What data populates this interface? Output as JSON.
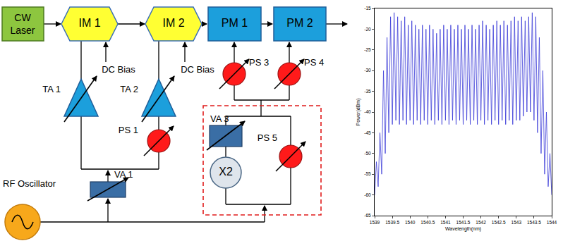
{
  "diagram": {
    "source": "CW Laser",
    "modulators": [
      "IM 1",
      "IM 2",
      "PM 1",
      "PM 2"
    ],
    "bias": [
      "DC Bias",
      "DC Bias"
    ],
    "amplifiers": [
      "TA 1",
      "TA 2"
    ],
    "phase_shifters": [
      "PS 1",
      "PS 3",
      "PS 4",
      "PS 5"
    ],
    "attenuators": [
      "VA 1",
      "VA 3"
    ],
    "multiplier": "X2",
    "oscillator": "RF Oscillator"
  },
  "chart_data": {
    "type": "line",
    "x_label": "Wavelength(nm)",
    "y_label": "Power(dBm)",
    "color": "#3c3cd8",
    "x": [
      1539,
      1539.05,
      1539.1,
      1539.15,
      1539.2,
      1539.25,
      1539.3,
      1539.35,
      1539.4,
      1539.45,
      1539.5,
      1539.55,
      1539.6,
      1539.65,
      1539.7,
      1539.75,
      1539.8,
      1539.85,
      1539.9,
      1539.95,
      1540,
      1540.05,
      1540.1,
      1540.15,
      1540.2,
      1540.25,
      1540.3,
      1540.35,
      1540.4,
      1540.45,
      1540.5,
      1540.55,
      1540.6,
      1540.65,
      1540.7,
      1540.75,
      1540.8,
      1540.85,
      1540.9,
      1540.95,
      1541,
      1541.05,
      1541.1,
      1541.15,
      1541.2,
      1541.25,
      1541.3,
      1541.35,
      1541.4,
      1541.45,
      1541.5,
      1541.55,
      1541.6,
      1541.65,
      1541.7,
      1541.75,
      1541.8,
      1541.85,
      1541.9,
      1541.95,
      1542,
      1542.05,
      1542.1,
      1542.15,
      1542.2,
      1542.25,
      1542.3,
      1542.35,
      1542.4,
      1542.45,
      1542.5,
      1542.55,
      1542.6,
      1542.65,
      1542.7,
      1542.75,
      1542.8,
      1542.85,
      1542.9,
      1542.95,
      1543,
      1543.05,
      1543.1,
      1543.15,
      1543.2,
      1543.25,
      1543.3,
      1543.35,
      1543.4,
      1543.45,
      1543.5,
      1543.55,
      1543.6,
      1543.65,
      1543.7,
      1543.75,
      1543.8,
      1543.85,
      1543.9,
      1543.95,
      1544
    ],
    "values": [
      -60,
      -52,
      -58,
      -45,
      -55,
      -30,
      -50,
      -22,
      -45,
      -17,
      -43,
      -16,
      -42,
      -17,
      -43,
      -18,
      -42,
      -17,
      -43,
      -19,
      -42,
      -18,
      -43,
      -19,
      -42,
      -20,
      -43,
      -19,
      -42,
      -20,
      -43,
      -19,
      -42,
      -20,
      -43,
      -21,
      -42,
      -20,
      -43,
      -19,
      -42,
      -20,
      -43,
      -19,
      -42,
      -20,
      -43,
      -19,
      -42,
      -20,
      -43,
      -19,
      -42,
      -20,
      -43,
      -19,
      -42,
      -20,
      -43,
      -19,
      -42,
      -18,
      -43,
      -19,
      -42,
      -20,
      -43,
      -19,
      -42,
      -18,
      -43,
      -19,
      -42,
      -18,
      -43,
      -19,
      -42,
      -18,
      -43,
      -17,
      -42,
      -18,
      -42,
      -17,
      -41,
      -18,
      -40,
      -17,
      -40,
      -16,
      -42,
      -17,
      -45,
      -22,
      -50,
      -30,
      -55,
      -40,
      -58,
      -50,
      -60
    ],
    "xlim": [
      1539,
      1544
    ],
    "xticks": [
      1539,
      1539.5,
      1540,
      1540.5,
      1541,
      1541.5,
      1542,
      1542.5,
      1543,
      1543.5,
      1544
    ],
    "ylim": [
      -65,
      -15
    ],
    "yticks": [
      -65,
      -60,
      -55,
      -50,
      -45,
      -40,
      -35,
      -30,
      -25,
      -20,
      -15
    ],
    "grid": false
  }
}
